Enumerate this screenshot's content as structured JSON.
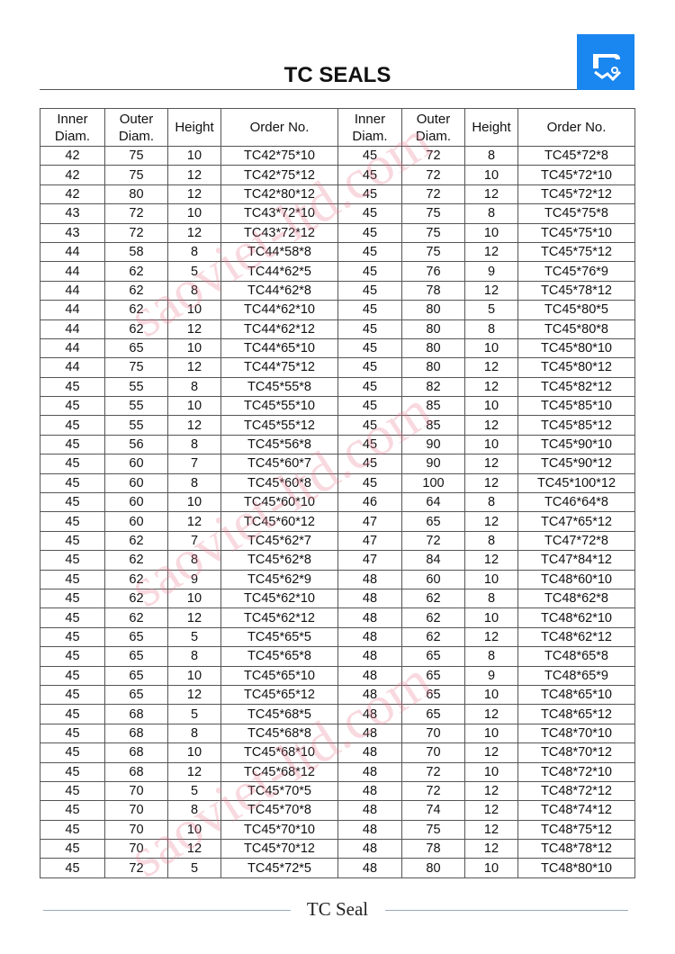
{
  "title": "TC SEALS",
  "footer": "TC Seal",
  "watermark": "saoviet-ltd.com",
  "colors": {
    "logo_bg": "#1a86f0",
    "watermark": "#e6788c"
  },
  "logo_icon": "seal-icon",
  "headers": [
    "Inner\nDiam.",
    "Outer\nDiam.",
    "Height",
    "Order No.",
    "Inner\nDiam.",
    "Outer\nDiam.",
    "Height",
    "Order No."
  ],
  "rows": [
    [
      "42",
      "75",
      "10",
      "TC42*75*10",
      "45",
      "72",
      "8",
      "TC45*72*8"
    ],
    [
      "42",
      "75",
      "12",
      "TC42*75*12",
      "45",
      "72",
      "10",
      "TC45*72*10"
    ],
    [
      "42",
      "80",
      "12",
      "TC42*80*12",
      "45",
      "72",
      "12",
      "TC45*72*12"
    ],
    [
      "43",
      "72",
      "10",
      "TC43*72*10",
      "45",
      "75",
      "8",
      "TC45*75*8"
    ],
    [
      "43",
      "72",
      "12",
      "TC43*72*12",
      "45",
      "75",
      "10",
      "TC45*75*10"
    ],
    [
      "44",
      "58",
      "8",
      "TC44*58*8",
      "45",
      "75",
      "12",
      "TC45*75*12"
    ],
    [
      "44",
      "62",
      "5",
      "TC44*62*5",
      "45",
      "76",
      "9",
      "TC45*76*9"
    ],
    [
      "44",
      "62",
      "8",
      "TC44*62*8",
      "45",
      "78",
      "12",
      "TC45*78*12"
    ],
    [
      "44",
      "62",
      "10",
      "TC44*62*10",
      "45",
      "80",
      "5",
      "TC45*80*5"
    ],
    [
      "44",
      "62",
      "12",
      "TC44*62*12",
      "45",
      "80",
      "8",
      "TC45*80*8"
    ],
    [
      "44",
      "65",
      "10",
      "TC44*65*10",
      "45",
      "80",
      "10",
      "TC45*80*10"
    ],
    [
      "44",
      "75",
      "12",
      "TC44*75*12",
      "45",
      "80",
      "12",
      "TC45*80*12"
    ],
    [
      "45",
      "55",
      "8",
      "TC45*55*8",
      "45",
      "82",
      "12",
      "TC45*82*12"
    ],
    [
      "45",
      "55",
      "10",
      "TC45*55*10",
      "45",
      "85",
      "10",
      "TC45*85*10"
    ],
    [
      "45",
      "55",
      "12",
      "TC45*55*12",
      "45",
      "85",
      "12",
      "TC45*85*12"
    ],
    [
      "45",
      "56",
      "8",
      "TC45*56*8",
      "45",
      "90",
      "10",
      "TC45*90*10"
    ],
    [
      "45",
      "60",
      "7",
      "TC45*60*7",
      "45",
      "90",
      "12",
      "TC45*90*12"
    ],
    [
      "45",
      "60",
      "8",
      "TC45*60*8",
      "45",
      "100",
      "12",
      "TC45*100*12"
    ],
    [
      "45",
      "60",
      "10",
      "TC45*60*10",
      "46",
      "64",
      "8",
      "TC46*64*8"
    ],
    [
      "45",
      "60",
      "12",
      "TC45*60*12",
      "47",
      "65",
      "12",
      "TC47*65*12"
    ],
    [
      "45",
      "62",
      "7",
      "TC45*62*7",
      "47",
      "72",
      "8",
      "TC47*72*8"
    ],
    [
      "45",
      "62",
      "8",
      "TC45*62*8",
      "47",
      "84",
      "12",
      "TC47*84*12"
    ],
    [
      "45",
      "62",
      "9",
      "TC45*62*9",
      "48",
      "60",
      "10",
      "TC48*60*10"
    ],
    [
      "45",
      "62",
      "10",
      "TC45*62*10",
      "48",
      "62",
      "8",
      "TC48*62*8"
    ],
    [
      "45",
      "62",
      "12",
      "TC45*62*12",
      "48",
      "62",
      "10",
      "TC48*62*10"
    ],
    [
      "45",
      "65",
      "5",
      "TC45*65*5",
      "48",
      "62",
      "12",
      "TC48*62*12"
    ],
    [
      "45",
      "65",
      "8",
      "TC45*65*8",
      "48",
      "65",
      "8",
      "TC48*65*8"
    ],
    [
      "45",
      "65",
      "10",
      "TC45*65*10",
      "48",
      "65",
      "9",
      "TC48*65*9"
    ],
    [
      "45",
      "65",
      "12",
      "TC45*65*12",
      "48",
      "65",
      "10",
      "TC48*65*10"
    ],
    [
      "45",
      "68",
      "5",
      "TC45*68*5",
      "48",
      "65",
      "12",
      "TC48*65*12"
    ],
    [
      "45",
      "68",
      "8",
      "TC45*68*8",
      "48",
      "70",
      "10",
      "TC48*70*10"
    ],
    [
      "45",
      "68",
      "10",
      "TC45*68*10",
      "48",
      "70",
      "12",
      "TC48*70*12"
    ],
    [
      "45",
      "68",
      "12",
      "TC45*68*12",
      "48",
      "72",
      "10",
      "TC48*72*10"
    ],
    [
      "45",
      "70",
      "5",
      "TC45*70*5",
      "48",
      "72",
      "12",
      "TC48*72*12"
    ],
    [
      "45",
      "70",
      "8",
      "TC45*70*8",
      "48",
      "74",
      "12",
      "TC48*74*12"
    ],
    [
      "45",
      "70",
      "10",
      "TC45*70*10",
      "48",
      "75",
      "12",
      "TC48*75*12"
    ],
    [
      "45",
      "70",
      "12",
      "TC45*70*12",
      "48",
      "78",
      "12",
      "TC48*78*12"
    ],
    [
      "45",
      "72",
      "5",
      "TC45*72*5",
      "48",
      "80",
      "10",
      "TC48*80*10"
    ]
  ]
}
